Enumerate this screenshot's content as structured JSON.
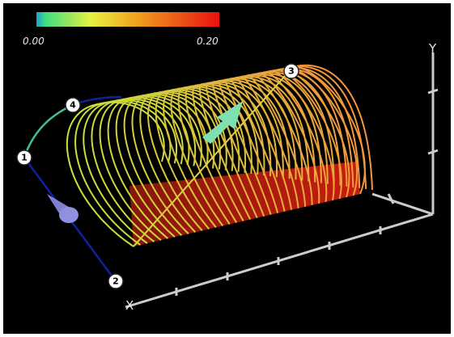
{
  "colorbar": {
    "min_label": "0.00",
    "max_label": "0.20"
  },
  "axes": {
    "x": "X",
    "y": "Y"
  },
  "points": [
    "1",
    "2",
    "3",
    "4"
  ]
}
